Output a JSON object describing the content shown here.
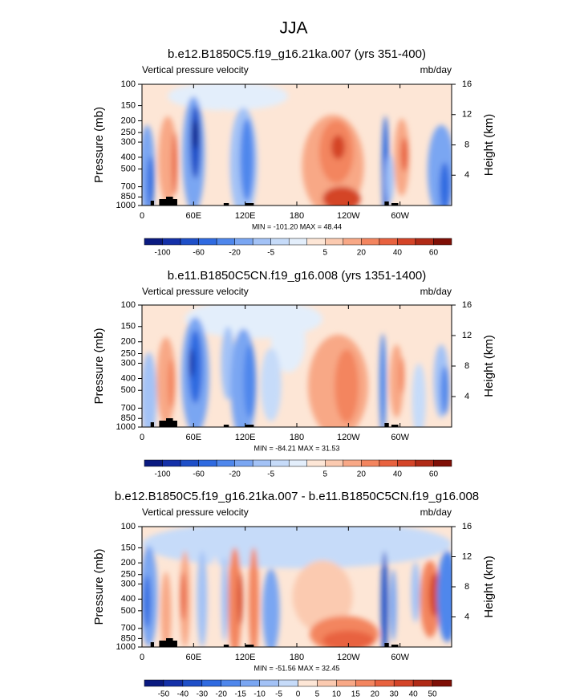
{
  "title": "JJA",
  "chart_data": [
    {
      "type": "contour",
      "title": "b.e12.B1850C5.f19_g16.21ka.007 (yrs 351-400)",
      "left_label": "Vertical pressure velocity",
      "right_label": "mb/day",
      "ylabel": "Pressure (mb)",
      "y2label": "Height (km)",
      "ylog": true,
      "xlim": [
        0,
        360
      ],
      "xticks": [
        0,
        {
          "value": 60,
          "label": "60E"
        },
        {
          "value": 120,
          "label": "120E"
        },
        180,
        {
          "value": 240,
          "label": "120W"
        },
        {
          "value": 300,
          "label": "60W"
        }
      ],
      "ylim": [
        1000,
        100
      ],
      "yticks": [
        100,
        150,
        200,
        250,
        300,
        400,
        500,
        700,
        850,
        1000
      ],
      "y2lim": [
        0,
        16
      ],
      "y2ticks": [
        4,
        8,
        12,
        16
      ],
      "stats": "MIN = -101.20  MAX =  48.44",
      "colors": [
        "#0a1a80",
        "#1430a8",
        "#1e4fc8",
        "#2f6ae0",
        "#4f87ec",
        "#7aa6f2",
        "#a3c2f6",
        "#c6dbf9",
        "#e3eefb",
        "#fde6d6",
        "#fbcab0",
        "#f8a886",
        "#f3855f",
        "#e8623f",
        "#d44428",
        "#b02a16",
        "#7f0f06"
      ],
      "colorbar_levels": [
        -100,
        null,
        -60,
        null,
        -20,
        null,
        -5,
        null,
        null,
        5,
        null,
        20,
        null,
        40,
        null,
        60
      ]
    },
    {
      "type": "contour",
      "title": "b.e11.B1850C5CN.f19_g16.008 (yrs 1351-1400)",
      "left_label": "Vertical pressure velocity",
      "right_label": "mb/day",
      "ylabel": "Pressure (mb)",
      "y2label": "Height (km)",
      "ylog": true,
      "xlim": [
        0,
        360
      ],
      "xticks": [
        0,
        {
          "value": 60,
          "label": "60E"
        },
        {
          "value": 120,
          "label": "120E"
        },
        180,
        {
          "value": 240,
          "label": "120W"
        },
        {
          "value": 300,
          "label": "60W"
        }
      ],
      "ylim": [
        1000,
        100
      ],
      "yticks": [
        100,
        150,
        200,
        250,
        300,
        400,
        500,
        700,
        850,
        1000
      ],
      "y2lim": [
        0,
        16
      ],
      "y2ticks": [
        4,
        8,
        12,
        16
      ],
      "stats": "MIN = -84.21  MAX =  31.53",
      "colors": [
        "#0a1a80",
        "#1430a8",
        "#1e4fc8",
        "#2f6ae0",
        "#4f87ec",
        "#7aa6f2",
        "#a3c2f6",
        "#c6dbf9",
        "#e3eefb",
        "#fde6d6",
        "#fbcab0",
        "#f8a886",
        "#f3855f",
        "#e8623f",
        "#d44428",
        "#b02a16",
        "#7f0f06"
      ],
      "colorbar_levels": [
        -100,
        null,
        -60,
        null,
        -20,
        null,
        -5,
        null,
        null,
        5,
        null,
        20,
        null,
        40,
        null,
        60
      ]
    },
    {
      "type": "contour",
      "title": "b.e12.B1850C5.f19_g16.21ka.007 - b.e11.B1850C5CN.f19_g16.008",
      "left_label": "Vertical pressure velocity",
      "right_label": "mb/day",
      "ylabel": "Pressure (mb)",
      "y2label": "Height (km)",
      "ylog": true,
      "xlim": [
        0,
        360
      ],
      "xticks": [
        0,
        {
          "value": 60,
          "label": "60E"
        },
        {
          "value": 120,
          "label": "120E"
        },
        180,
        {
          "value": 240,
          "label": "120W"
        },
        {
          "value": 300,
          "label": "60W"
        }
      ],
      "ylim": [
        1000,
        100
      ],
      "yticks": [
        100,
        150,
        200,
        250,
        300,
        400,
        500,
        700,
        850,
        1000
      ],
      "y2lim": [
        0,
        16
      ],
      "y2ticks": [
        4,
        8,
        12,
        16
      ],
      "stats": "MIN = -51.56  MAX =  32.45",
      "colors": [
        "#0a1a80",
        "#1430a8",
        "#1e4fc8",
        "#2f6ae0",
        "#4f87ec",
        "#7aa6f2",
        "#a3c2f6",
        "#c6dbf9",
        "#fde6d6",
        "#fbcab0",
        "#f8a886",
        "#f3855f",
        "#e8623f",
        "#d44428",
        "#b02a16",
        "#7f0f06"
      ],
      "colorbar_levels": [
        -50,
        -40,
        -30,
        -20,
        -15,
        -10,
        -5,
        0,
        5,
        10,
        15,
        20,
        30,
        40,
        50
      ]
    }
  ]
}
